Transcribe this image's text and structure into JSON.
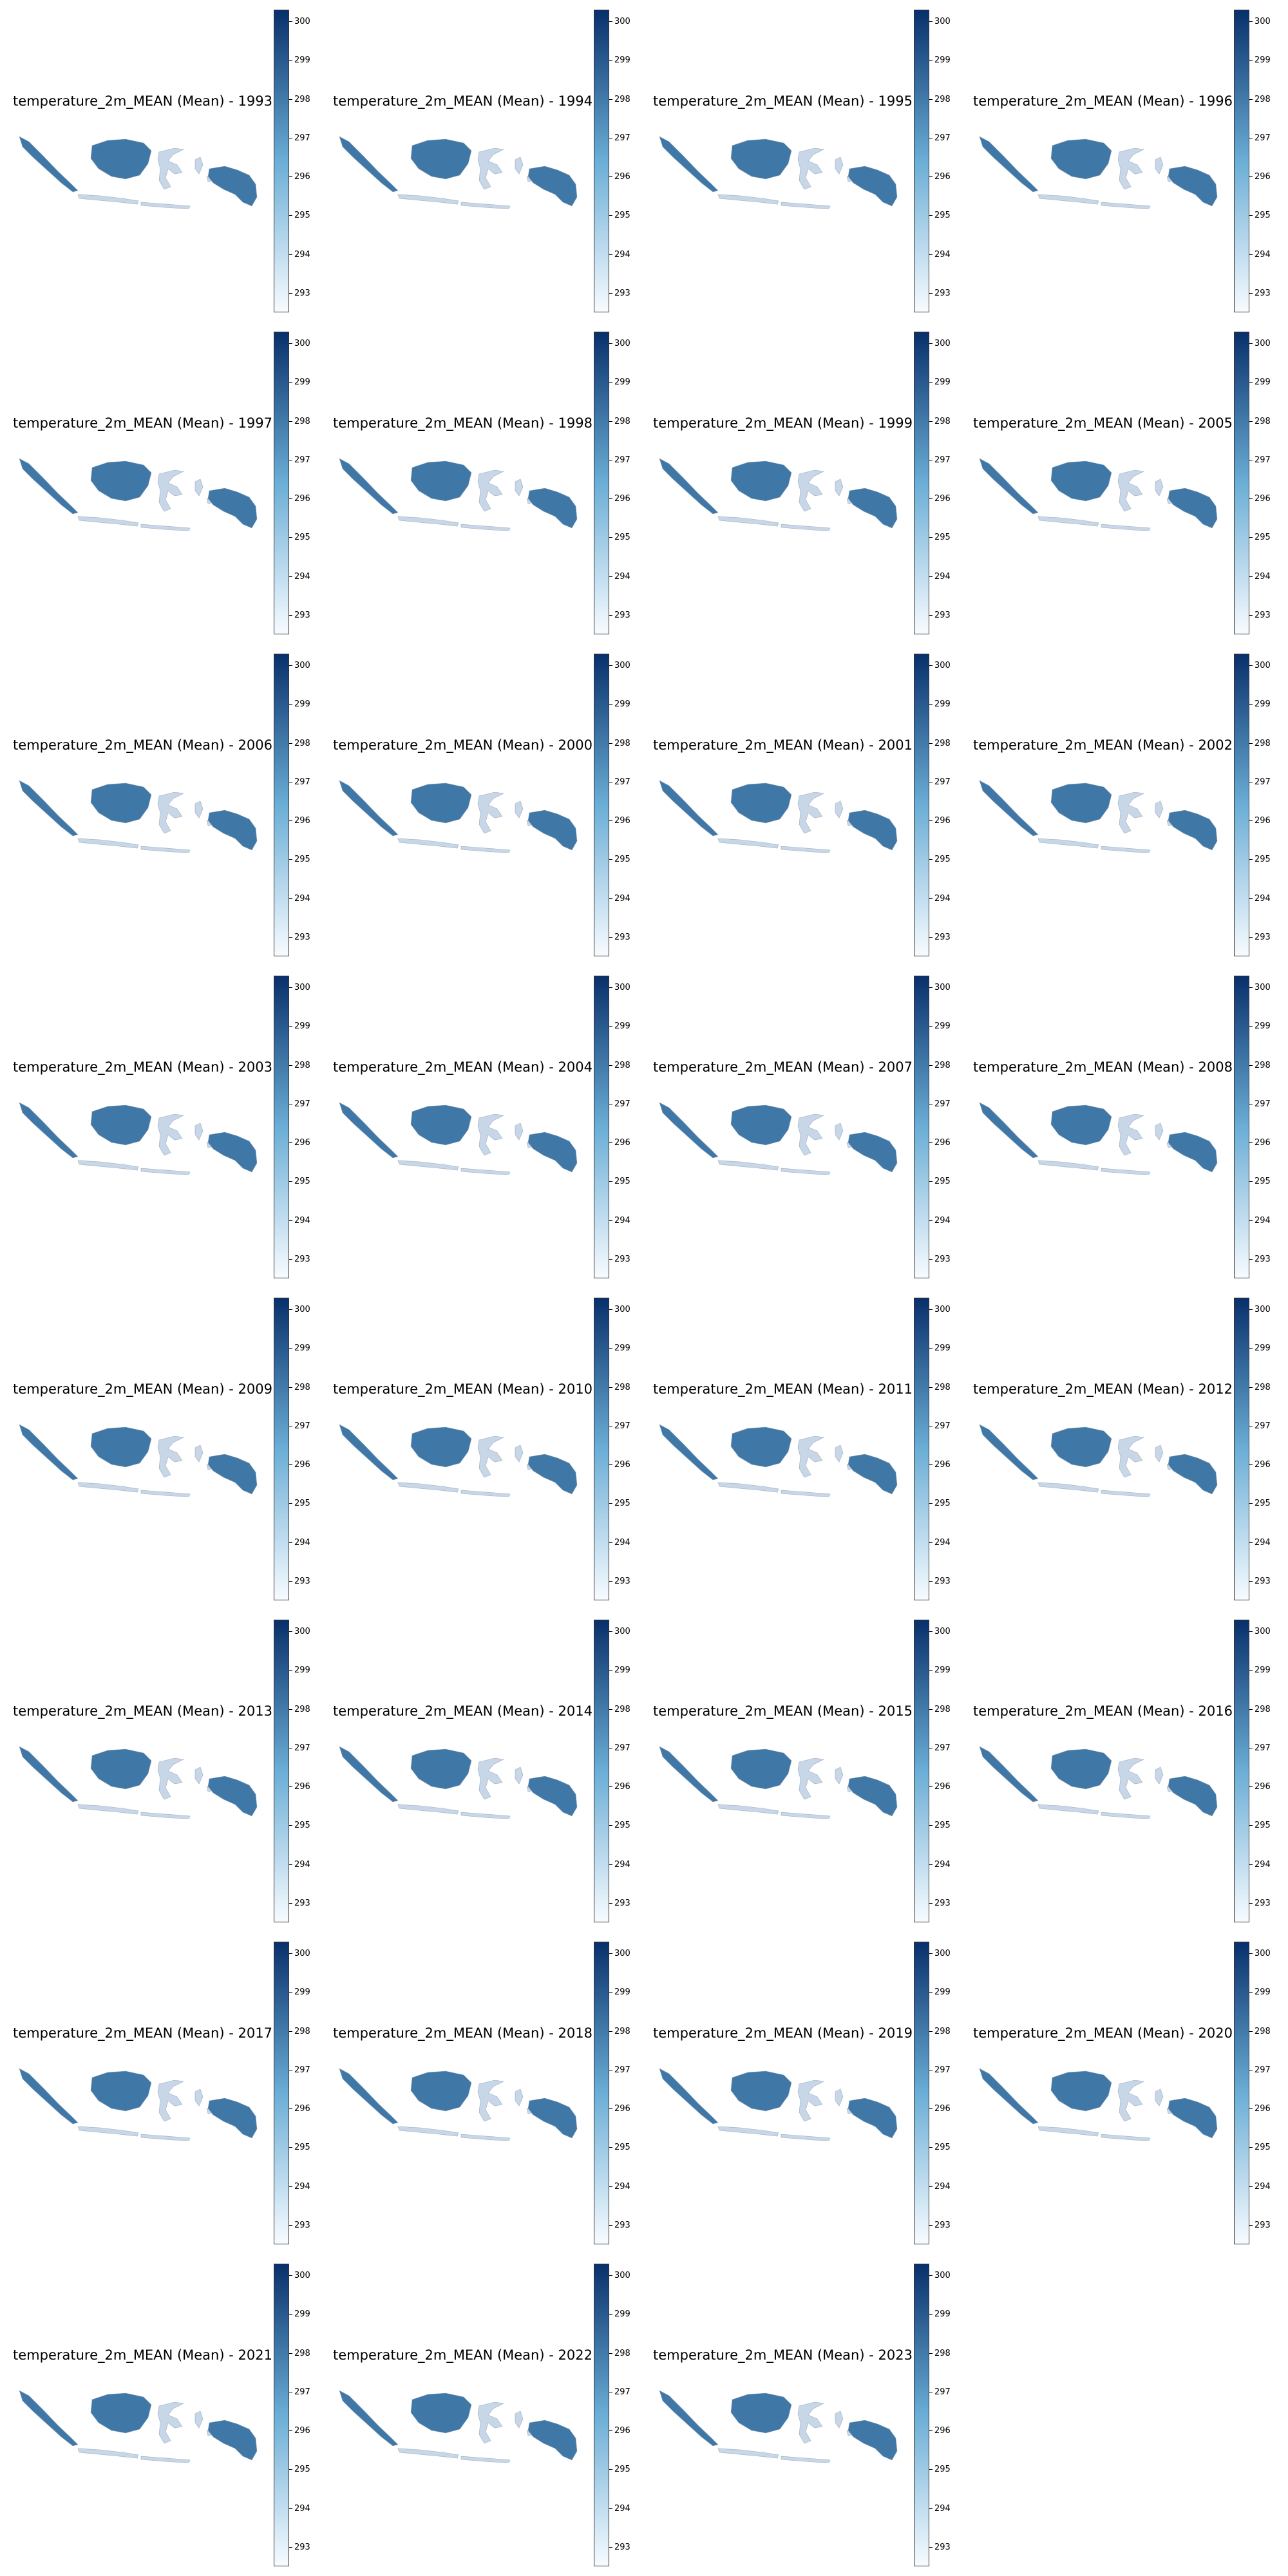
{
  "colormap": {
    "low": "#f7fbff",
    "mid": "#6baed6",
    "high": "#08306b"
  },
  "colorbar_ticks": [
    "293",
    "294",
    "295",
    "296",
    "297",
    "298",
    "299",
    "300"
  ],
  "colorbar_range": [
    292.5,
    300.3
  ],
  "land_color": "#c8d7e8",
  "map_data": [
    {
      "title": "temperature_2m_MEAN (Mean) - 1993",
      "year": "1993"
    },
    {
      "title": "temperature_2m_MEAN (Mean) - 1994",
      "year": "1994"
    },
    {
      "title": "temperature_2m_MEAN (Mean) - 1995",
      "year": "1995"
    },
    {
      "title": "temperature_2m_MEAN (Mean) - 1996",
      "year": "1996"
    },
    {
      "title": "temperature_2m_MEAN (Mean) - 1997",
      "year": "1997"
    },
    {
      "title": "temperature_2m_MEAN (Mean) - 1998",
      "year": "1998"
    },
    {
      "title": "temperature_2m_MEAN (Mean) - 1999",
      "year": "1999"
    },
    {
      "title": "temperature_2m_MEAN (Mean) - 2005",
      "year": "2005"
    },
    {
      "title": "temperature_2m_MEAN (Mean) - 2006",
      "year": "2006"
    },
    {
      "title": "temperature_2m_MEAN (Mean) - 2000",
      "year": "2000"
    },
    {
      "title": "temperature_2m_MEAN (Mean) - 2001",
      "year": "2001"
    },
    {
      "title": "temperature_2m_MEAN (Mean) - 2002",
      "year": "2002"
    },
    {
      "title": "temperature_2m_MEAN (Mean) - 2003",
      "year": "2003"
    },
    {
      "title": "temperature_2m_MEAN (Mean) - 2004",
      "year": "2004"
    },
    {
      "title": "temperature_2m_MEAN (Mean) - 2007",
      "year": "2007"
    },
    {
      "title": "temperature_2m_MEAN (Mean) - 2008",
      "year": "2008"
    },
    {
      "title": "temperature_2m_MEAN (Mean) - 2009",
      "year": "2009"
    },
    {
      "title": "temperature_2m_MEAN (Mean) - 2010",
      "year": "2010"
    },
    {
      "title": "temperature_2m_MEAN (Mean) - 2011",
      "year": "2011"
    },
    {
      "title": "temperature_2m_MEAN (Mean) - 2012",
      "year": "2012"
    },
    {
      "title": "temperature_2m_MEAN (Mean) - 2013",
      "year": "2013"
    },
    {
      "title": "temperature_2m_MEAN (Mean) - 2014",
      "year": "2014"
    },
    {
      "title": "temperature_2m_MEAN (Mean) - 2015",
      "year": "2015"
    },
    {
      "title": "temperature_2m_MEAN (Mean) - 2016",
      "year": "2016"
    },
    {
      "title": "temperature_2m_MEAN (Mean) - 2017",
      "year": "2017"
    },
    {
      "title": "temperature_2m_MEAN (Mean) - 2018",
      "year": "2018"
    },
    {
      "title": "temperature_2m_MEAN (Mean) - 2019",
      "year": "2019"
    },
    {
      "title": "temperature_2m_MEAN (Mean) - 2020",
      "year": "2020"
    },
    {
      "title": "temperature_2m_MEAN (Mean) - 2021",
      "year": "2021"
    },
    {
      "title": "temperature_2m_MEAN (Mean) - 2022",
      "year": "2022"
    },
    {
      "title": "temperature_2m_MEAN (Mean) - 2023",
      "year": "2023"
    }
  ]
}
